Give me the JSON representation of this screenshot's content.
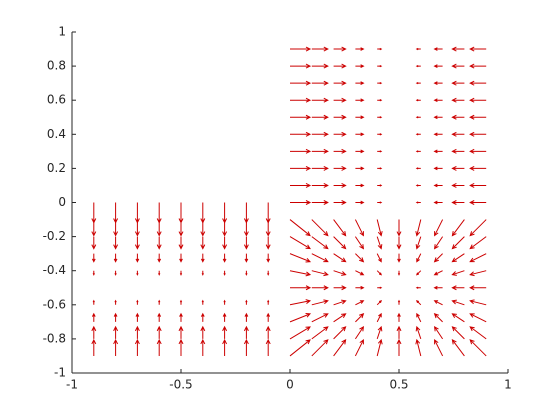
{
  "chart_data": {
    "type": "quiver",
    "color": "#cc0000",
    "xlim": [
      -1,
      1
    ],
    "ylim": [
      -1,
      1
    ],
    "xticks": [
      -1,
      -0.5,
      0,
      0.5,
      1
    ],
    "yticks": [
      -1,
      -0.8,
      -0.6,
      -0.4,
      -0.2,
      0,
      0.2,
      0.4,
      0.6,
      0.8,
      1
    ],
    "x": [
      -0.9,
      -0.8,
      -0.7,
      -0.6,
      -0.5,
      -0.4,
      -0.3,
      -0.2,
      -0.1,
      0,
      0.1,
      0.2,
      0.3,
      0.4,
      0.5,
      0.6,
      0.7,
      0.8,
      0.9
    ],
    "y": [
      0.9,
      0.8,
      0.7,
      0.6,
      0.5,
      0.4,
      0.3,
      0.2,
      0.1,
      0,
      -0.1,
      -0.2,
      -0.3,
      -0.4,
      -0.5,
      -0.6,
      -0.7,
      -0.8,
      -0.9
    ],
    "u": [
      [
        null,
        null,
        null,
        null,
        null,
        null,
        null,
        null,
        null,
        0.5,
        0.4,
        0.3,
        0.2,
        0.1,
        0,
        -0.1,
        -0.2,
        -0.3,
        -0.4
      ],
      [
        null,
        null,
        null,
        null,
        null,
        null,
        null,
        null,
        null,
        0.5,
        0.4,
        0.3,
        0.2,
        0.1,
        0,
        -0.1,
        -0.2,
        -0.3,
        -0.4
      ],
      [
        null,
        null,
        null,
        null,
        null,
        null,
        null,
        null,
        null,
        0.5,
        0.4,
        0.3,
        0.2,
        0.1,
        0,
        -0.1,
        -0.2,
        -0.3,
        -0.4
      ],
      [
        null,
        null,
        null,
        null,
        null,
        null,
        null,
        null,
        null,
        0.5,
        0.4,
        0.3,
        0.2,
        0.1,
        0,
        -0.1,
        -0.2,
        -0.3,
        -0.4
      ],
      [
        null,
        null,
        null,
        null,
        null,
        null,
        null,
        null,
        null,
        0.5,
        0.4,
        0.3,
        0.2,
        0.1,
        0,
        -0.1,
        -0.2,
        -0.3,
        -0.4
      ],
      [
        null,
        null,
        null,
        null,
        null,
        null,
        null,
        null,
        null,
        0.5,
        0.4,
        0.3,
        0.2,
        0.1,
        0,
        -0.1,
        -0.2,
        -0.3,
        -0.4
      ],
      [
        null,
        null,
        null,
        null,
        null,
        null,
        null,
        null,
        null,
        0.5,
        0.4,
        0.3,
        0.2,
        0.1,
        0,
        -0.1,
        -0.2,
        -0.3,
        -0.4
      ],
      [
        null,
        null,
        null,
        null,
        null,
        null,
        null,
        null,
        null,
        0.5,
        0.4,
        0.3,
        0.2,
        0.1,
        0,
        -0.1,
        -0.2,
        -0.3,
        -0.4
      ],
      [
        null,
        null,
        null,
        null,
        null,
        null,
        null,
        null,
        null,
        0.5,
        0.4,
        0.3,
        0.2,
        0.1,
        0,
        -0.1,
        -0.2,
        -0.3,
        -0.4
      ],
      [
        0,
        0,
        0,
        0,
        0,
        0,
        0,
        0,
        0,
        0.5,
        0.4,
        0.3,
        0.2,
        0.1,
        0,
        -0.1,
        -0.2,
        -0.3,
        -0.4
      ],
      [
        0,
        0,
        0,
        0,
        0,
        0,
        0,
        0,
        0,
        0.5,
        0.4,
        0.3,
        0.2,
        0.1,
        0,
        -0.1,
        -0.2,
        -0.3,
        -0.4
      ],
      [
        0,
        0,
        0,
        0,
        0,
        0,
        0,
        0,
        0,
        0.5,
        0.4,
        0.3,
        0.2,
        0.1,
        0,
        -0.1,
        -0.2,
        -0.3,
        -0.4
      ],
      [
        0,
        0,
        0,
        0,
        0,
        0,
        0,
        0,
        0,
        0.5,
        0.4,
        0.3,
        0.2,
        0.1,
        0,
        -0.1,
        -0.2,
        -0.3,
        -0.4
      ],
      [
        0,
        0,
        0,
        0,
        0,
        0,
        0,
        0,
        0,
        0.5,
        0.4,
        0.3,
        0.2,
        0.1,
        0,
        -0.1,
        -0.2,
        -0.3,
        -0.4
      ],
      [
        0,
        0,
        0,
        0,
        0,
        0,
        0,
        0,
        0,
        0.5,
        0.4,
        0.3,
        0.2,
        0.1,
        0,
        -0.1,
        -0.2,
        -0.3,
        -0.4
      ],
      [
        0,
        0,
        0,
        0,
        0,
        0,
        0,
        0,
        0,
        0.5,
        0.4,
        0.3,
        0.2,
        0.1,
        0,
        -0.1,
        -0.2,
        -0.3,
        -0.4
      ],
      [
        0,
        0,
        0,
        0,
        0,
        0,
        0,
        0,
        0,
        0.5,
        0.4,
        0.3,
        0.2,
        0.1,
        0,
        -0.1,
        -0.2,
        -0.3,
        -0.4
      ],
      [
        0,
        0,
        0,
        0,
        0,
        0,
        0,
        0,
        0,
        0.5,
        0.4,
        0.3,
        0.2,
        0.1,
        0,
        -0.1,
        -0.2,
        -0.3,
        -0.4
      ],
      [
        0,
        0,
        0,
        0,
        0,
        0,
        0,
        0,
        0,
        0.5,
        0.4,
        0.3,
        0.2,
        0.1,
        0,
        -0.1,
        -0.2,
        -0.3,
        -0.4
      ]
    ],
    "v": [
      [
        null,
        null,
        null,
        null,
        null,
        null,
        null,
        null,
        null,
        0,
        0,
        0,
        0,
        0,
        0,
        0,
        0,
        0,
        0
      ],
      [
        null,
        null,
        null,
        null,
        null,
        null,
        null,
        null,
        null,
        0,
        0,
        0,
        0,
        0,
        0,
        0,
        0,
        0,
        0
      ],
      [
        null,
        null,
        null,
        null,
        null,
        null,
        null,
        null,
        null,
        0,
        0,
        0,
        0,
        0,
        0,
        0,
        0,
        0,
        0
      ],
      [
        null,
        null,
        null,
        null,
        null,
        null,
        null,
        null,
        null,
        0,
        0,
        0,
        0,
        0,
        0,
        0,
        0,
        0,
        0
      ],
      [
        null,
        null,
        null,
        null,
        null,
        null,
        null,
        null,
        null,
        0,
        0,
        0,
        0,
        0,
        0,
        0,
        0,
        0,
        0
      ],
      [
        null,
        null,
        null,
        null,
        null,
        null,
        null,
        null,
        null,
        0,
        0,
        0,
        0,
        0,
        0,
        0,
        0,
        0,
        0
      ],
      [
        null,
        null,
        null,
        null,
        null,
        null,
        null,
        null,
        null,
        0,
        0,
        0,
        0,
        0,
        0,
        0,
        0,
        0,
        0
      ],
      [
        null,
        null,
        null,
        null,
        null,
        null,
        null,
        null,
        null,
        0,
        0,
        0,
        0,
        0,
        0,
        0,
        0,
        0,
        0
      ],
      [
        null,
        null,
        null,
        null,
        null,
        null,
        null,
        null,
        null,
        0,
        0,
        0,
        0,
        0,
        0,
        0,
        0,
        0,
        0
      ],
      [
        -0.5,
        -0.5,
        -0.5,
        -0.5,
        -0.5,
        -0.5,
        -0.5,
        -0.5,
        -0.5,
        0,
        0,
        0,
        0,
        0,
        0,
        0,
        0,
        0,
        0
      ],
      [
        -0.4,
        -0.4,
        -0.4,
        -0.4,
        -0.4,
        -0.4,
        -0.4,
        -0.4,
        -0.4,
        -0.4,
        -0.4,
        -0.4,
        -0.4,
        -0.4,
        -0.4,
        -0.4,
        -0.4,
        -0.4,
        -0.4
      ],
      [
        -0.3,
        -0.3,
        -0.3,
        -0.3,
        -0.3,
        -0.3,
        -0.3,
        -0.3,
        -0.3,
        -0.3,
        -0.3,
        -0.3,
        -0.3,
        -0.3,
        -0.3,
        -0.3,
        -0.3,
        -0.3,
        -0.3
      ],
      [
        -0.2,
        -0.2,
        -0.2,
        -0.2,
        -0.2,
        -0.2,
        -0.2,
        -0.2,
        -0.2,
        -0.2,
        -0.2,
        -0.2,
        -0.2,
        -0.2,
        -0.2,
        -0.2,
        -0.2,
        -0.2,
        -0.2
      ],
      [
        -0.1,
        -0.1,
        -0.1,
        -0.1,
        -0.1,
        -0.1,
        -0.1,
        -0.1,
        -0.1,
        -0.1,
        -0.1,
        -0.1,
        -0.1,
        -0.1,
        -0.1,
        -0.1,
        -0.1,
        -0.1,
        -0.1
      ],
      [
        0,
        0,
        0,
        0,
        0,
        0,
        0,
        0,
        0,
        0,
        0,
        0,
        0,
        0,
        0,
        0,
        0,
        0,
        0
      ],
      [
        0.1,
        0.1,
        0.1,
        0.1,
        0.1,
        0.1,
        0.1,
        0.1,
        0.1,
        0.1,
        0.1,
        0.1,
        0.1,
        0.1,
        0.1,
        0.1,
        0.1,
        0.1,
        0.1
      ],
      [
        0.2,
        0.2,
        0.2,
        0.2,
        0.2,
        0.2,
        0.2,
        0.2,
        0.2,
        0.2,
        0.2,
        0.2,
        0.2,
        0.2,
        0.2,
        0.2,
        0.2,
        0.2,
        0.2
      ],
      [
        0.3,
        0.3,
        0.3,
        0.3,
        0.3,
        0.3,
        0.3,
        0.3,
        0.3,
        0.3,
        0.3,
        0.3,
        0.3,
        0.3,
        0.3,
        0.3,
        0.3,
        0.3,
        0.3
      ],
      [
        0.4,
        0.4,
        0.4,
        0.4,
        0.4,
        0.4,
        0.4,
        0.4,
        0.4,
        0.4,
        0.4,
        0.4,
        0.4,
        0.4,
        0.4,
        0.4,
        0.4,
        0.4,
        0.4
      ]
    ]
  }
}
